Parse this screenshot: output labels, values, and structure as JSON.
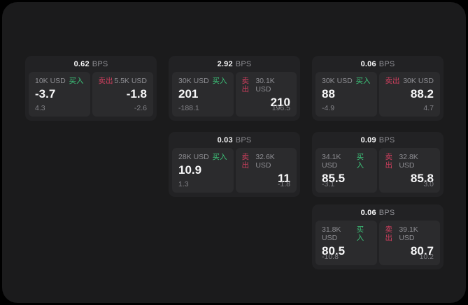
{
  "labels": {
    "bps_unit": "BPS",
    "buy": "买入",
    "sell": "卖出"
  },
  "colors": {
    "page_bg": "#000000",
    "window_bg": "#1b1b1c",
    "card_bg": "#222224",
    "panel_bg": "#2b2b2d",
    "buy_green": "#3cc379",
    "sell_red": "#cf3f5e",
    "text_primary": "#f5f5f6",
    "text_muted": "#8e8e93"
  },
  "cards": [
    {
      "bps": "0.62",
      "buy": {
        "amount": "10K USD",
        "price": "-3.7",
        "delta": "4.3"
      },
      "sell": {
        "amount": "5.5K USD",
        "price": "-1.8",
        "delta": "-2.6"
      }
    },
    {
      "bps": "2.92",
      "buy": {
        "amount": "30K USD",
        "price": "201",
        "delta": "-188.1"
      },
      "sell": {
        "amount": "30.1K USD",
        "price": "210",
        "delta": "196.5"
      }
    },
    {
      "bps": "0.06",
      "buy": {
        "amount": "30K USD",
        "price": "88",
        "delta": "-4.9"
      },
      "sell": {
        "amount": "30K USD",
        "price": "88.2",
        "delta": "4.7"
      }
    },
    {
      "bps": "0.03",
      "buy": {
        "amount": "28K USD",
        "price": "10.9",
        "delta": "1.3"
      },
      "sell": {
        "amount": "32.6K USD",
        "price": "11",
        "delta": "-1.8"
      }
    },
    {
      "bps": "0.09",
      "buy": {
        "amount": "34.1K USD",
        "price": "85.5",
        "delta": "-3.1"
      },
      "sell": {
        "amount": "32.8K USD",
        "price": "85.8",
        "delta": "3.0"
      }
    },
    {
      "bps": "0.06",
      "buy": {
        "amount": "31.8K USD",
        "price": "80.5",
        "delta": "-10.8"
      },
      "sell": {
        "amount": "39.1K USD",
        "price": "80.7",
        "delta": "10.2"
      }
    }
  ]
}
